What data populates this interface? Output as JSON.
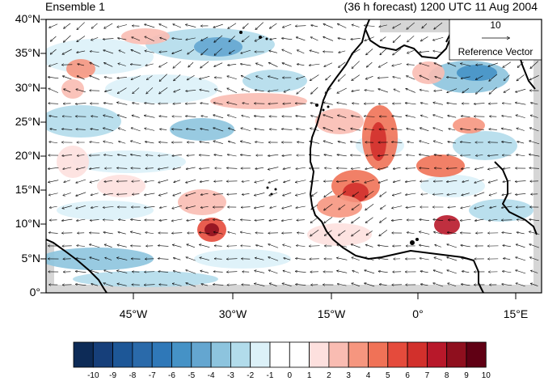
{
  "titles": {
    "left": "Ensemble 1",
    "right": "(36 h forecast) 1200 UTC 11 Aug 2004"
  },
  "axes": {
    "lat_labels": [
      "40°N",
      "35°N",
      "30°N",
      "25°N",
      "20°N",
      "15°N",
      "10°N",
      "5°N",
      "0°"
    ],
    "lon_labels": [
      "45°W",
      "30°W",
      "15°W",
      "0°",
      "15°E"
    ]
  },
  "reference_vector": {
    "magnitude": "10",
    "label": "Reference Vector"
  },
  "colorbar": {
    "labels": [
      "-10",
      "-9",
      "-8",
      "-7",
      "-6",
      "-5",
      "-4",
      "-3",
      "-2",
      "-1",
      "0",
      "1",
      "2",
      "3",
      "4",
      "5",
      "6",
      "7",
      "8",
      "9",
      "10"
    ],
    "colors": [
      "#0d2b57",
      "#163f7a",
      "#1d5797",
      "#2a6aaa",
      "#2f78b8",
      "#4592c6",
      "#64a6d0",
      "#8dc4de",
      "#b2dceb",
      "#dcf1f8",
      "#ffffff",
      "#ffffff",
      "#fde0de",
      "#f9bcb2",
      "#f6967f",
      "#f07257",
      "#e54b3c",
      "#d2302c",
      "#b8182a",
      "#8f0f1e",
      "#600014"
    ]
  },
  "colors": {
    "ocean_blue_light": "#dcf1f8",
    "ocean_red_light": "#fde0de",
    "land_missing": "#d6d6d6",
    "coastline": "#000000",
    "vector": "#000000"
  }
}
